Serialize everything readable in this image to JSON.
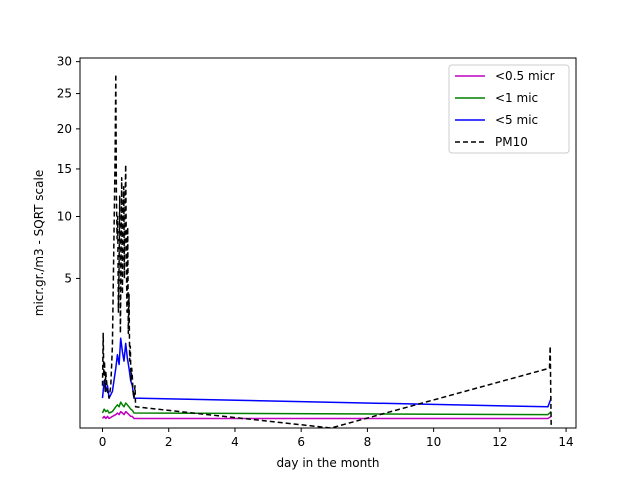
{
  "chart_data": {
    "type": "line",
    "title": "",
    "xlabel": "day in the month",
    "ylabel": "micr.gr./m3 - SQRT scale",
    "y_scale": "sqrt",
    "xlim": [
      -0.68,
      14.3
    ],
    "ylim": [
      0,
      30.6
    ],
    "x_ticks": [
      0,
      2,
      4,
      6,
      8,
      10,
      12,
      14
    ],
    "y_ticks": [
      5,
      10,
      15,
      20,
      25,
      30
    ],
    "grid": false,
    "legend_position": "top-right",
    "series": [
      {
        "name": "<0.5 micr",
        "color": "#bf00bf",
        "style": "solid",
        "x": [
          0.0,
          0.05,
          0.1,
          0.15,
          0.2,
          0.3,
          0.4,
          0.45,
          0.5,
          0.55,
          0.6,
          0.65,
          0.7,
          0.75,
          0.8,
          0.85,
          0.9,
          0.95,
          13.45,
          13.55
        ],
        "y": [
          0.02,
          0.03,
          0.02,
          0.03,
          0.02,
          0.03,
          0.04,
          0.05,
          0.04,
          0.06,
          0.05,
          0.04,
          0.06,
          0.05,
          0.04,
          0.03,
          0.03,
          0.02,
          0.02,
          0.03
        ]
      },
      {
        "name": "<1 mic",
        "color": "#008000",
        "style": "solid",
        "x": [
          0.0,
          0.05,
          0.1,
          0.15,
          0.2,
          0.3,
          0.4,
          0.45,
          0.5,
          0.55,
          0.6,
          0.65,
          0.7,
          0.75,
          0.8,
          0.85,
          0.9,
          0.95,
          13.45,
          13.55
        ],
        "y": [
          0.05,
          0.08,
          0.06,
          0.07,
          0.05,
          0.06,
          0.1,
          0.12,
          0.1,
          0.15,
          0.12,
          0.1,
          0.14,
          0.12,
          0.1,
          0.08,
          0.07,
          0.05,
          0.04,
          0.06
        ]
      },
      {
        "name": "<5 mic",
        "color": "#0000ff",
        "style": "solid",
        "x": [
          0.0,
          0.05,
          0.1,
          0.15,
          0.2,
          0.3,
          0.4,
          0.45,
          0.5,
          0.55,
          0.6,
          0.65,
          0.7,
          0.75,
          0.8,
          0.85,
          0.9,
          0.95,
          13.45,
          13.55
        ],
        "y": [
          0.2,
          0.5,
          0.3,
          0.4,
          0.2,
          0.3,
          0.8,
          1.2,
          0.9,
          1.8,
          1.3,
          1.0,
          1.6,
          1.1,
          0.8,
          0.5,
          0.4,
          0.2,
          0.1,
          0.2
        ]
      },
      {
        "name": "PM10",
        "color": "#000000",
        "style": "dashed",
        "x": [
          0.0,
          0.02,
          0.04,
          0.06,
          0.08,
          0.1,
          0.12,
          0.15,
          0.2,
          0.25,
          0.3,
          0.35,
          0.38,
          0.4,
          0.42,
          0.44,
          0.46,
          0.48,
          0.5,
          0.52,
          0.54,
          0.56,
          0.58,
          0.6,
          0.62,
          0.64,
          0.66,
          0.68,
          0.7,
          0.72,
          0.74,
          0.76,
          0.78,
          0.8,
          0.82,
          0.84,
          0.86,
          0.88,
          0.9,
          0.92,
          0.95,
          0.98,
          1.0,
          6.9,
          13.5,
          13.52,
          13.55
        ],
        "y": [
          0.4,
          2.0,
          0.6,
          1.0,
          0.3,
          0.7,
          0.5,
          0.3,
          0.2,
          0.4,
          1.5,
          9.0,
          16.5,
          28.0,
          12.0,
          8.0,
          10.0,
          3.0,
          6.0,
          12.0,
          2.0,
          7.0,
          14.0,
          4.0,
          9.0,
          13.0,
          5.0,
          11.0,
          15.5,
          6.0,
          3.0,
          9.0,
          2.0,
          4.0,
          1.0,
          1.5,
          0.5,
          0.8,
          0.6,
          0.3,
          0.2,
          0.4,
          0.1,
          0.0,
          0.8,
          1.5,
          0.0
        ]
      }
    ]
  }
}
